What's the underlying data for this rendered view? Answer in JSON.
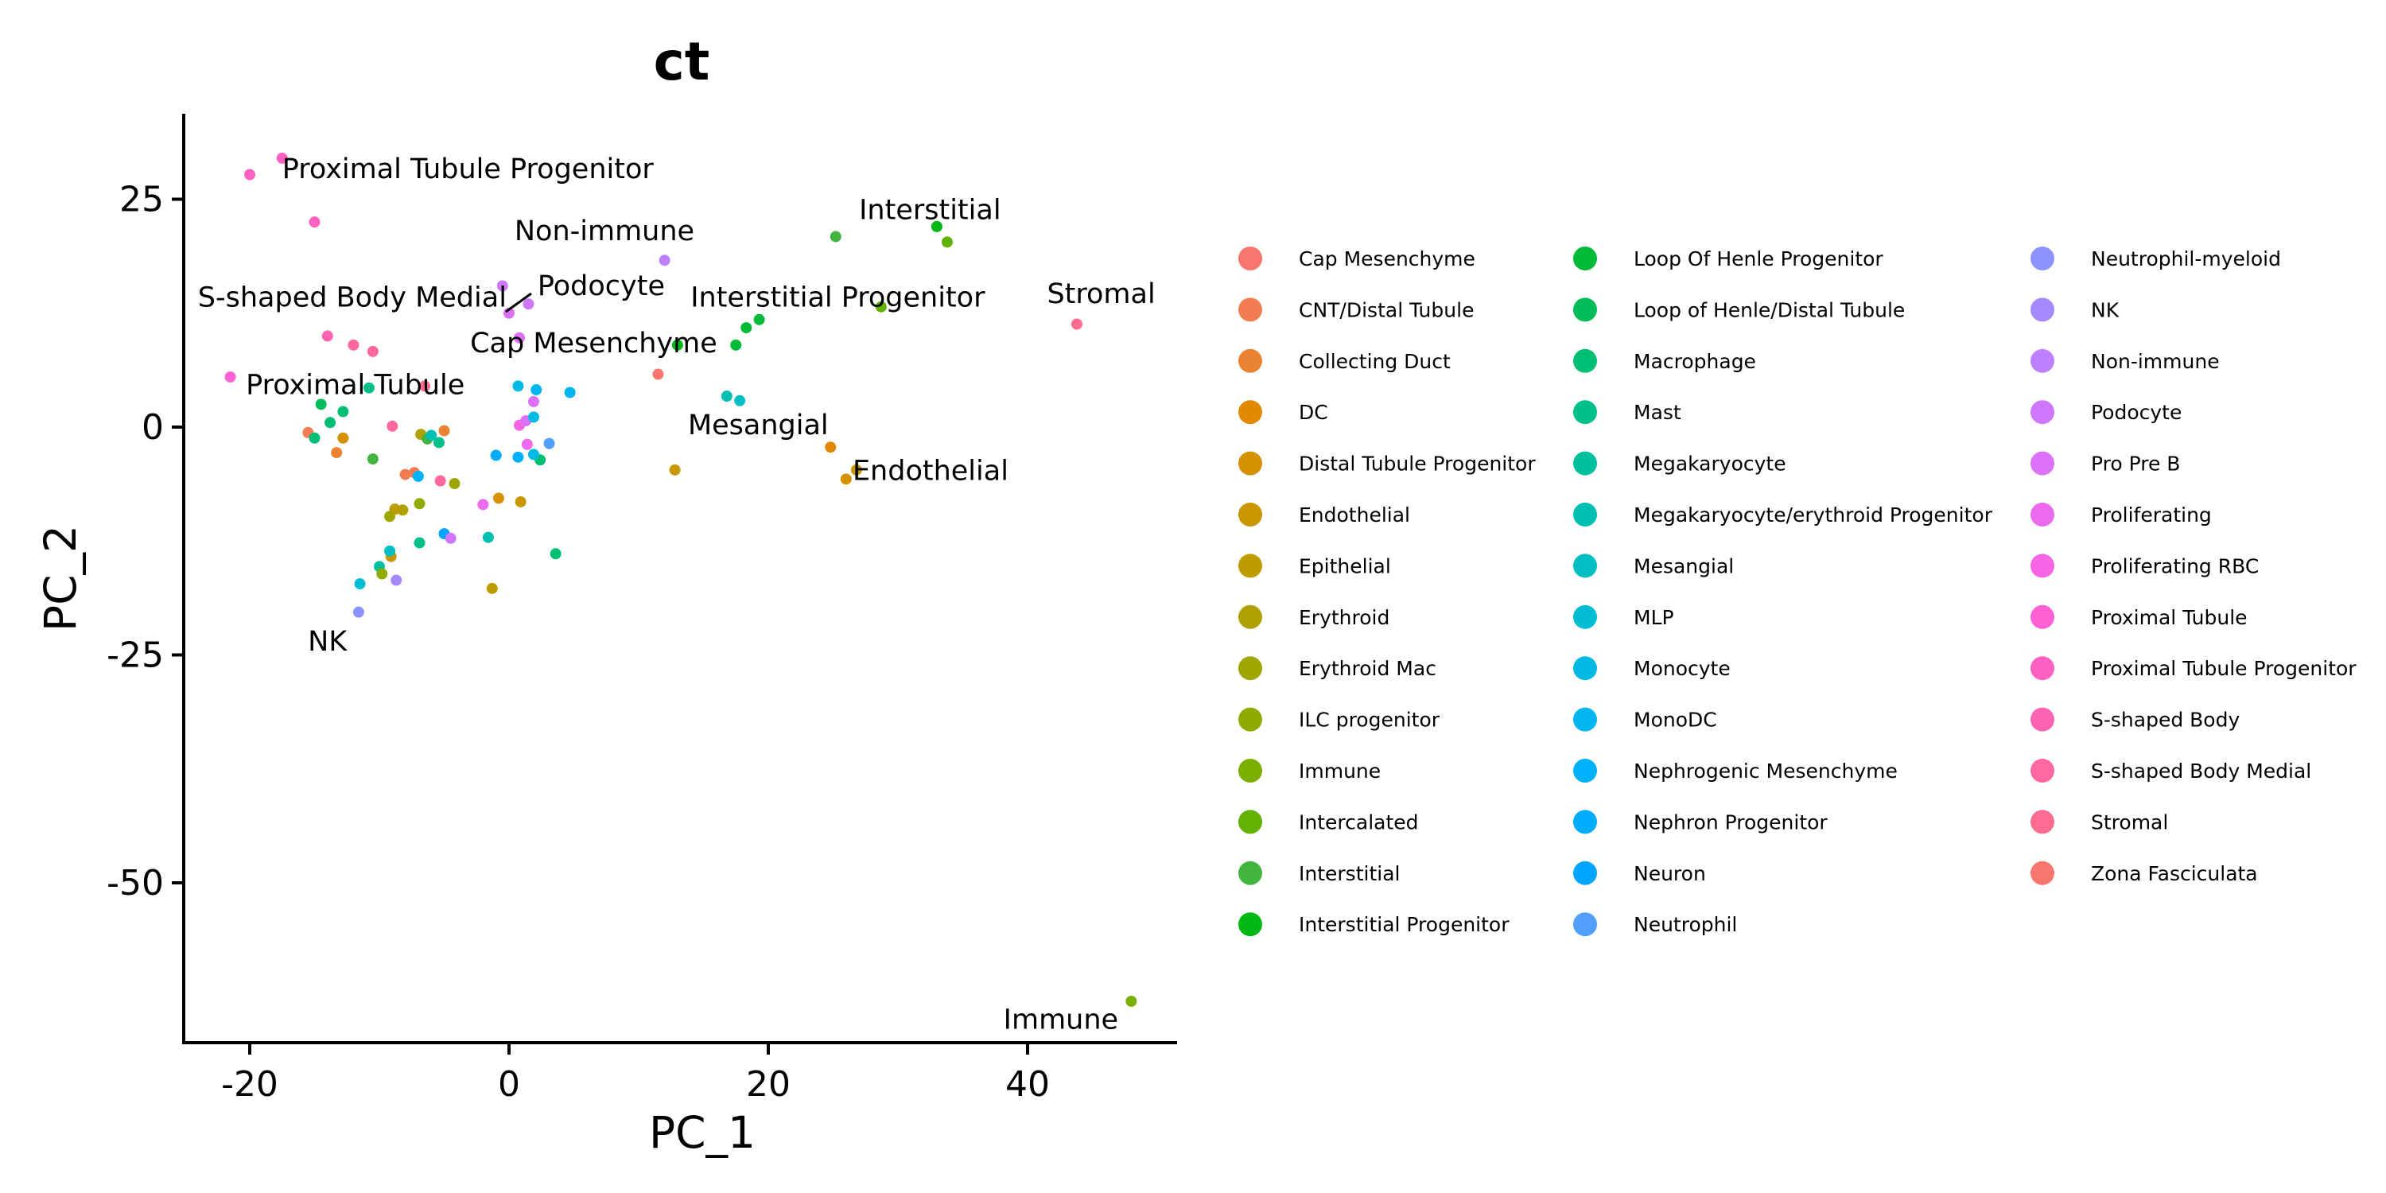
{
  "chart_data": {
    "type": "scatter",
    "title": "ct",
    "xlabel": "PC_1",
    "ylabel": "PC_2",
    "xlim": [
      -25,
      51.5
    ],
    "ylim": [
      -68,
      34
    ],
    "xticks": [
      -20,
      0,
      20,
      40
    ],
    "yticks": [
      -50,
      -25,
      0,
      25
    ],
    "legend_position": "right",
    "grid": false,
    "categories": [
      "Cap Mesenchyme",
      "CNT/Distal Tubule",
      "Collecting Duct",
      "DC",
      "Distal Tubule Progenitor",
      "Endothelial",
      "Epithelial",
      "Erythroid",
      "Erythroid Mac",
      "ILC progenitor",
      "Immune",
      "Intercalated",
      "Interstitial",
      "Interstitial Progenitor",
      "Loop Of Henle Progenitor",
      "Loop of Henle/Distal Tubule",
      "Macrophage",
      "Mast",
      "Megakaryocyte",
      "Megakaryocyte/erythroid Progenitor",
      "Mesangial",
      "MLP",
      "Monocyte",
      "MonoDC",
      "Nephrogenic Mesenchyme",
      "Nephron Progenitor",
      "Neuron",
      "Neutrophil",
      "Neutrophil-myeloid",
      "NK",
      "Non-immune",
      "Podocyte",
      "Pro Pre B",
      "Proliferating",
      "Proliferating RBC",
      "Proximal Tubule",
      "Proximal Tubule Progenitor",
      "S-shaped Body",
      "S-shaped Body Medial",
      "Stromal",
      "Zona Fasciculata"
    ],
    "colors": [
      "#F8766D",
      "#F27D52",
      "#EA8331",
      "#E18A00",
      "#D69100",
      "#CB9700",
      "#BE9C00",
      "#B0A100",
      "#A0A600",
      "#8EAB00",
      "#7AAF00",
      "#62B200",
      "#42B540",
      "#00B813",
      "#00BA38",
      "#00BC59",
      "#00BE73",
      "#00BF89",
      "#00C09E",
      "#00C0B2",
      "#00BFC4",
      "#00BDD4",
      "#00BAE3",
      "#00B6F0",
      "#00B2FB",
      "#00ACFC",
      "#00A5FF",
      "#529EFF",
      "#8B93FF",
      "#A58AFF",
      "#BD81FF",
      "#CF78FF",
      "#DE71F9",
      "#EB6AEE",
      "#F564E3",
      "#FD61D3",
      "#FF61C3",
      "#FF64B2",
      "#FF699F",
      "#FF6C91",
      "#F8766D"
    ],
    "points": [
      {
        "x": -17.5,
        "y": 29.5,
        "c": 36
      },
      {
        "x": -20,
        "y": 27.7,
        "c": 36
      },
      {
        "x": -15,
        "y": 22.5,
        "c": 36
      },
      {
        "x": -14,
        "y": 10,
        "c": 37
      },
      {
        "x": -12,
        "y": 9,
        "c": 38
      },
      {
        "x": -10.5,
        "y": 8.3,
        "c": 38
      },
      {
        "x": -21.5,
        "y": 5.5,
        "c": 35
      },
      {
        "x": -6.5,
        "y": 4.5,
        "c": 39
      },
      {
        "x": 43.8,
        "y": 11.3,
        "c": 39
      },
      {
        "x": -0.5,
        "y": 15.5,
        "c": 31
      },
      {
        "x": 0,
        "y": 12.5,
        "c": 32
      },
      {
        "x": 1.5,
        "y": 13.5,
        "c": 31
      },
      {
        "x": 0.8,
        "y": 9.8,
        "c": 32
      },
      {
        "x": 12,
        "y": 18.3,
        "c": 30
      },
      {
        "x": 11.5,
        "y": 5.8,
        "c": 0
      },
      {
        "x": 25.2,
        "y": 20.9,
        "c": 12
      },
      {
        "x": 33,
        "y": 22
      },
      {
        "x": 33.8,
        "y": 20.3,
        "c": 11
      },
      {
        "x": 28.7,
        "y": 13.2,
        "c": 11
      },
      {
        "x": 13,
        "y": 9,
        "c": 13
      },
      {
        "x": 17.5,
        "y": 9,
        "c": 14
      },
      {
        "x": 18.3,
        "y": 10.9,
        "c": 14
      },
      {
        "x": 19.3,
        "y": 11.8,
        "c": 14
      },
      {
        "x": 16.8,
        "y": 3.4,
        "c": 19
      },
      {
        "x": 17.8,
        "y": 2.9,
        "c": 20
      },
      {
        "x": 24.8,
        "y": -2.2,
        "c": 3
      },
      {
        "x": 26,
        "y": -5.7,
        "c": 4
      },
      {
        "x": 26.8,
        "y": -4.7,
        "c": 5
      },
      {
        "x": 12.8,
        "y": -4.7,
        "c": 5
      },
      {
        "x": 48,
        "y": -63,
        "c": 10
      },
      {
        "x": -14.5,
        "y": 2.5,
        "c": 15
      },
      {
        "x": -12.8,
        "y": 1.7,
        "c": 16
      },
      {
        "x": -10.8,
        "y": 4.3,
        "c": 17
      },
      {
        "x": -13.8,
        "y": 0.5,
        "c": 16
      },
      {
        "x": -15.5,
        "y": -0.6,
        "c": 1
      },
      {
        "x": -15,
        "y": -1.2,
        "c": 16
      },
      {
        "x": -12.8,
        "y": -1.2,
        "c": 4
      },
      {
        "x": -13.3,
        "y": -2.8,
        "c": 2
      },
      {
        "x": -10.5,
        "y": -3.5,
        "c": 12
      },
      {
        "x": -9,
        "y": 0.1,
        "c": 38
      },
      {
        "x": -6.8,
        "y": -0.8,
        "c": 7
      },
      {
        "x": -6.3,
        "y": -1.3,
        "c": 12
      },
      {
        "x": -5,
        "y": -0.4,
        "c": 2
      },
      {
        "x": -5.4,
        "y": -1.7,
        "c": 17
      },
      {
        "x": -6,
        "y": -0.9,
        "c": 19
      },
      {
        "x": -8,
        "y": -5.2,
        "c": 1
      },
      {
        "x": -7.3,
        "y": -5,
        "c": 1
      },
      {
        "x": -7,
        "y": -5.4,
        "c": 24
      },
      {
        "x": -5.3,
        "y": -5.9,
        "c": 38
      },
      {
        "x": -4.2,
        "y": -6.2,
        "c": 8
      },
      {
        "x": -6.9,
        "y": -8.4,
        "c": 9
      },
      {
        "x": -8.8,
        "y": -9,
        "c": 6
      },
      {
        "x": -8.2,
        "y": -9.1,
        "c": 7
      },
      {
        "x": -9.2,
        "y": -9.8,
        "c": 8
      },
      {
        "x": -9.1,
        "y": -14.2,
        "c": 5
      },
      {
        "x": -9.2,
        "y": -13.6,
        "c": 20
      },
      {
        "x": -10,
        "y": -15.3,
        "c": 18
      },
      {
        "x": -11.5,
        "y": -17.2,
        "c": 21
      },
      {
        "x": -9.8,
        "y": -16.1,
        "c": 9
      },
      {
        "x": -8.7,
        "y": -16.8,
        "c": 29
      },
      {
        "x": -11.6,
        "y": -20.3,
        "c": 28
      },
      {
        "x": -6.9,
        "y": -12.7,
        "c": 17
      },
      {
        "x": -5,
        "y": -11.7,
        "c": 26
      },
      {
        "x": -4.5,
        "y": -12.2,
        "c": 31
      },
      {
        "x": -2,
        "y": -8.5,
        "c": 33
      },
      {
        "x": -1.6,
        "y": -12.1,
        "c": 19
      },
      {
        "x": -0.8,
        "y": -7.8,
        "c": 4
      },
      {
        "x": 0.9,
        "y": -8.2,
        "c": 5
      },
      {
        "x": -1.3,
        "y": -17.7,
        "c": 6
      },
      {
        "x": 3.6,
        "y": -13.9,
        "c": 16
      },
      {
        "x": 2.4,
        "y": -3.6,
        "c": 16
      },
      {
        "x": -1,
        "y": -3.1,
        "c": 25
      },
      {
        "x": 0.7,
        "y": -3.3,
        "c": 24
      },
      {
        "x": 1.9,
        "y": -3,
        "c": 22
      },
      {
        "x": 3.1,
        "y": -1.8,
        "c": 27
      },
      {
        "x": 1.4,
        "y": -1.9,
        "c": 33
      },
      {
        "x": 0.8,
        "y": 0.2,
        "c": 34
      },
      {
        "x": 1.3,
        "y": 0.7,
        "c": 32
      },
      {
        "x": 1.9,
        "y": 2.8,
        "c": 32
      },
      {
        "x": 1.9,
        "y": 1.1,
        "c": 22
      },
      {
        "x": 2.1,
        "y": 4.1,
        "c": 23
      },
      {
        "x": 0.7,
        "y": 4.5,
        "c": 22
      },
      {
        "x": 4.7,
        "y": 3.8,
        "c": 23
      }
    ],
    "annotations": [
      {
        "text": "Proximal Tubule Progenitor",
        "x": -17.5,
        "y": 27.3,
        "anchor": "start"
      },
      {
        "text": "Non-immune",
        "x": 14.3,
        "y": 20.5,
        "anchor": "end"
      },
      {
        "text": "Interstitial",
        "x": 27,
        "y": 22.8,
        "anchor": "start"
      },
      {
        "text": "S-shaped Body Medial",
        "x": -24,
        "y": 13.2,
        "anchor": "start"
      },
      {
        "text": "Podocyte",
        "x": 2.2,
        "y": 14.5,
        "anchor": "start"
      },
      {
        "text": "Interstitial Progenitor",
        "x": 14,
        "y": 13.2,
        "anchor": "start"
      },
      {
        "text": "Stromal",
        "x": 41.5,
        "y": 13.6,
        "anchor": "start"
      },
      {
        "text": "Cap Mesenchyme",
        "x": -3,
        "y": 8.2,
        "anchor": "start"
      },
      {
        "text": "Proximal Tubule",
        "x": -20.3,
        "y": 3.6,
        "anchor": "start"
      },
      {
        "text": "Mesangial",
        "x": 13.8,
        "y": -0.8,
        "anchor": "start"
      },
      {
        "text": "Endothelial",
        "x": 26.5,
        "y": -5.8,
        "anchor": "start"
      },
      {
        "text": "NK",
        "x": -12.5,
        "y": -24.5,
        "anchor": "end"
      },
      {
        "text": "Immune",
        "x": 47,
        "y": -66,
        "anchor": "end"
      }
    ],
    "legend_columns": [
      [
        0,
        1,
        2,
        3,
        4,
        5,
        6,
        7,
        8,
        9,
        10,
        11,
        12,
        13
      ],
      [
        14,
        15,
        16,
        17,
        18,
        19,
        20,
        21,
        22,
        23,
        24,
        25,
        26,
        27
      ],
      [
        28,
        29,
        30,
        31,
        32,
        33,
        34,
        35,
        36,
        37,
        38,
        39,
        40
      ]
    ]
  }
}
